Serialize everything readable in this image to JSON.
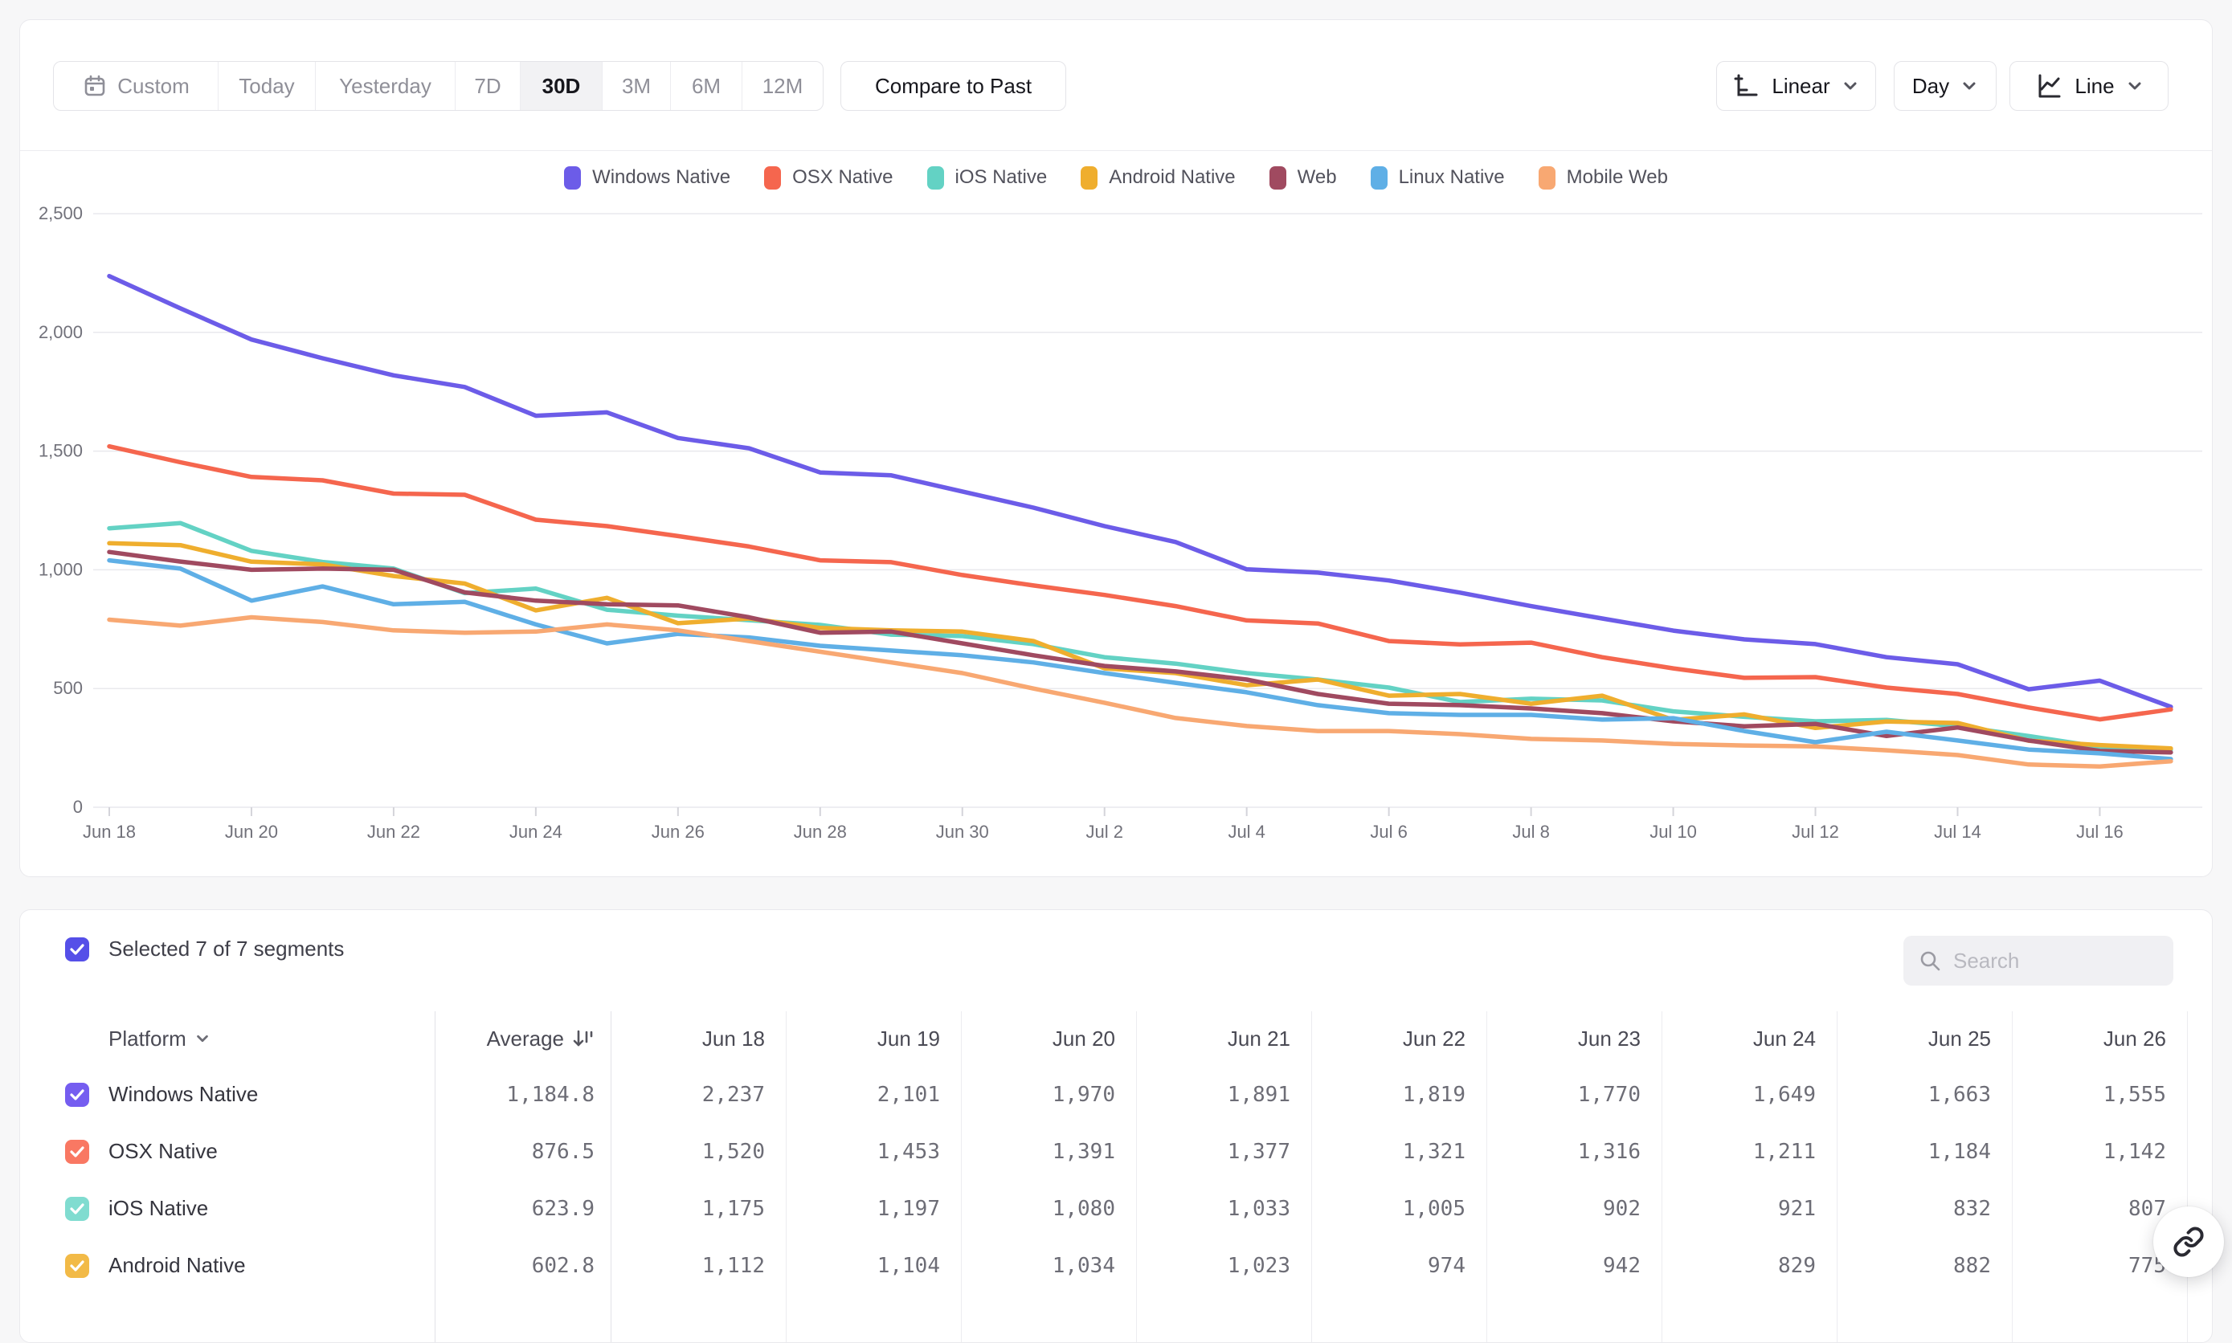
{
  "toolbar": {
    "date_ranges": [
      "Custom",
      "Today",
      "Yesterday",
      "7D",
      "30D",
      "3M",
      "6M",
      "12M"
    ],
    "active_range": "30D",
    "compare_label": "Compare to Past",
    "scale_label": "Linear",
    "interval_label": "Day",
    "chart_type_label": "Line"
  },
  "chart_data": {
    "type": "line",
    "x": [
      "Jun 18",
      "Jun 19",
      "Jun 20",
      "Jun 21",
      "Jun 22",
      "Jun 23",
      "Jun 24",
      "Jun 25",
      "Jun 26",
      "Jun 27",
      "Jun 28",
      "Jun 29",
      "Jun 30",
      "Jul 1",
      "Jul 2",
      "Jul 3",
      "Jul 4",
      "Jul 5",
      "Jul 6",
      "Jul 7",
      "Jul 8",
      "Jul 9",
      "Jul 10",
      "Jul 11",
      "Jul 12",
      "Jul 13",
      "Jul 14",
      "Jul 15",
      "Jul 16",
      "Jul 17"
    ],
    "x_tick_every": 2,
    "ylim": [
      0,
      2500
    ],
    "y_ticks": [
      0,
      500,
      1000,
      1500,
      2000,
      2500
    ],
    "y_tick_labels": [
      "0",
      "500",
      "1,000",
      "1,500",
      "2,000",
      "2,500"
    ],
    "grid": "horizontal",
    "legend_position": "top-center",
    "series": [
      {
        "name": "Windows Native",
        "color": "#6c5ce8",
        "values": [
          2237,
          2101,
          1970,
          1891,
          1819,
          1770,
          1649,
          1663,
          1555,
          1512,
          1410,
          1398,
          1330,
          1262,
          1184,
          1117,
          1002,
          988,
          955,
          904,
          847,
          795,
          744,
          707,
          687,
          632,
          602,
          497,
          533,
          423
        ]
      },
      {
        "name": "OSX Native",
        "color": "#f5664e",
        "values": [
          1520,
          1453,
          1391,
          1377,
          1321,
          1316,
          1211,
          1184,
          1142,
          1098,
          1040,
          1032,
          978,
          934,
          894,
          847,
          787,
          774,
          700,
          686,
          693,
          632,
          585,
          545,
          548,
          504,
          477,
          420,
          370,
          412
        ]
      },
      {
        "name": "iOS Native",
        "color": "#63d2c4",
        "values": [
          1175,
          1197,
          1080,
          1033,
          1005,
          902,
          921,
          832,
          807,
          788,
          768,
          727,
          721,
          687,
          632,
          605,
          565,
          538,
          504,
          443,
          457,
          450,
          404,
          381,
          362,
          368,
          341,
          300,
          254,
          243
        ]
      },
      {
        "name": "Android Native",
        "color": "#efae2e",
        "values": [
          1112,
          1104,
          1034,
          1023,
          974,
          942,
          829,
          882,
          775,
          795,
          755,
          745,
          740,
          700,
          585,
          565,
          514,
          538,
          470,
          477,
          436,
          470,
          368,
          391,
          334,
          361,
          355,
          280,
          262,
          248
        ]
      },
      {
        "name": "Web",
        "color": "#a04a60",
        "values": [
          1075,
          1035,
          1000,
          1005,
          1000,
          905,
          870,
          855,
          850,
          800,
          735,
          740,
          690,
          640,
          595,
          572,
          538,
          477,
          436,
          430,
          416,
          396,
          362,
          341,
          351,
          300,
          336,
          281,
          237,
          231
        ]
      },
      {
        "name": "Linux Native",
        "color": "#5fafe6",
        "values": [
          1040,
          1005,
          870,
          930,
          855,
          865,
          770,
          690,
          730,
          715,
          680,
          660,
          640,
          610,
          565,
          524,
          484,
          430,
          396,
          389,
          389,
          369,
          375,
          321,
          274,
          318,
          281,
          243,
          227,
          203
        ]
      },
      {
        "name": "Mobile Web",
        "color": "#f8a872",
        "values": [
          790,
          765,
          800,
          780,
          745,
          735,
          740,
          770,
          745,
          700,
          655,
          610,
          565,
          500,
          440,
          376,
          342,
          321,
          321,
          308,
          288,
          281,
          267,
          260,
          256,
          240,
          220,
          180,
          172,
          194
        ]
      }
    ]
  },
  "table": {
    "selected_summary": "Selected 7 of 7 segments",
    "select_all_color": "#554fe8",
    "search_placeholder": "Search",
    "columns": [
      "Platform",
      "Average",
      "Jun 18",
      "Jun 19",
      "Jun 20",
      "Jun 21",
      "Jun 22",
      "Jun 23",
      "Jun 24",
      "Jun 25",
      "Jun 26"
    ],
    "rows": [
      {
        "platform": "Windows Native",
        "checkbox_color": "#755df0",
        "average": "1,184.8",
        "values": [
          "2,237",
          "2,101",
          "1,970",
          "1,891",
          "1,819",
          "1,770",
          "1,649",
          "1,663",
          "1,555"
        ]
      },
      {
        "platform": "OSX Native",
        "checkbox_color": "#f97863",
        "average": "876.5",
        "values": [
          "1,520",
          "1,453",
          "1,391",
          "1,377",
          "1,321",
          "1,316",
          "1,211",
          "1,184",
          "1,142"
        ]
      },
      {
        "platform": "iOS Native",
        "checkbox_color": "#80dcd0",
        "average": "623.9",
        "values": [
          "1,175",
          "1,197",
          "1,080",
          "1,033",
          "1,005",
          "902",
          "921",
          "832",
          "807"
        ]
      },
      {
        "platform": "Android Native",
        "checkbox_color": "#f2ba47",
        "average": "602.8",
        "values": [
          "1,112",
          "1,104",
          "1,034",
          "1,023",
          "974",
          "942",
          "829",
          "882",
          "775"
        ]
      }
    ]
  }
}
